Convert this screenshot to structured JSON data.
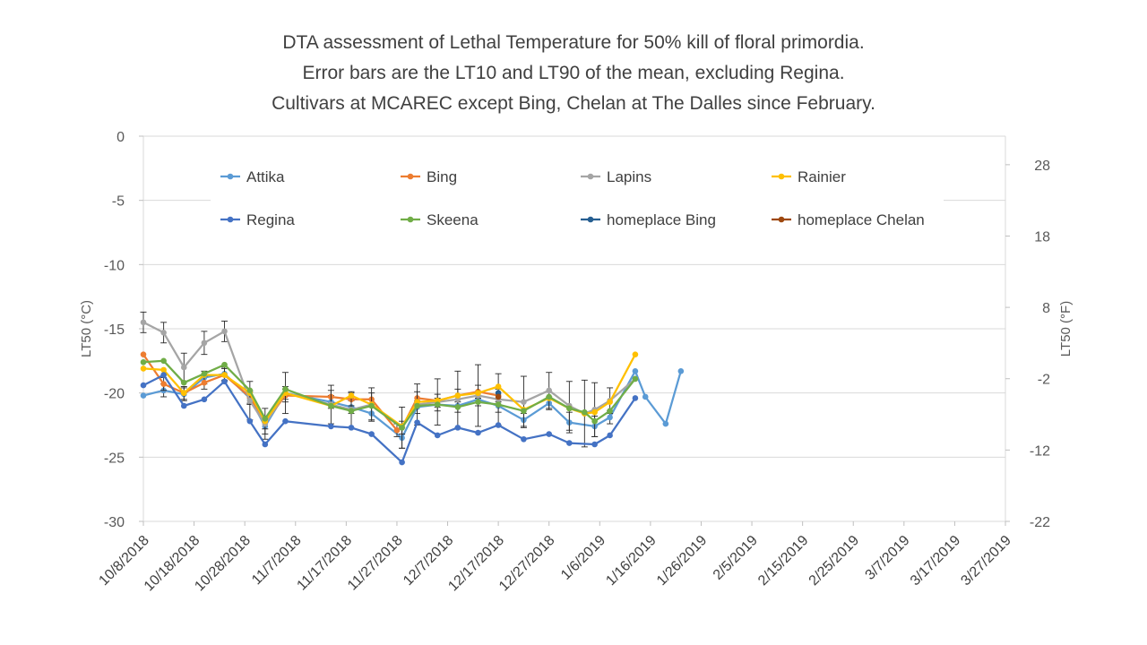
{
  "chart_data": {
    "type": "line",
    "title": [
      "DTA assessment of Lethal Temperature for 50% kill of floral primordia.",
      "Error bars are the LT10 and LT90 of the mean, excluding Regina.",
      "Cultivars at MCAREC except Bing, Chelan at The Dalles since  February."
    ],
    "xlabel": "",
    "ylabel": "LT50 (°C)",
    "y2label": "LT50 (°F)",
    "ylim": [
      -30,
      0
    ],
    "yticks": [
      0,
      -5,
      -10,
      -15,
      -20,
      -25,
      -30
    ],
    "y2ticks": [
      28,
      18,
      8,
      -2,
      -12,
      -22
    ],
    "xlim_days": [
      0,
      170
    ],
    "xticks": [
      "10/8/2018",
      "10/18/2018",
      "10/28/2018",
      "11/7/2018",
      "11/17/2018",
      "11/27/2018",
      "12/7/2018",
      "12/17/2018",
      "12/27/2018",
      "1/6/2019",
      "1/16/2019",
      "1/26/2019",
      "2/5/2019",
      "2/15/2019",
      "2/25/2019",
      "3/7/2019",
      "3/17/2019",
      "3/27/2019"
    ],
    "x_unit": "days since 10/8/2018",
    "legend_position": "top",
    "series": [
      {
        "name": "Attika",
        "color": "#5B9BD5",
        "x": [
          0,
          4,
          8,
          12,
          16,
          21,
          24,
          28,
          37,
          41,
          45,
          51,
          54,
          58,
          62,
          66,
          70,
          75,
          80,
          84,
          89,
          92,
          97,
          99,
          103,
          106
        ],
        "y": [
          -20.2,
          -19.8,
          -20.1,
          -18.8,
          -18.5,
          -20.4,
          -22.6,
          -20.0,
          -20.7,
          -21.1,
          -21.6,
          -23.5,
          -21.1,
          -20.9,
          -21.0,
          -20.5,
          -21.0,
          -22.1,
          -20.8,
          -22.3,
          -22.6,
          -21.9,
          -18.3,
          -20.3,
          -22.4,
          -18.3
        ],
        "err": [
          0,
          0.5,
          0.5,
          0.5,
          0.5,
          0.5,
          0.6,
          0.5,
          0.5,
          0.5,
          0.5,
          0.8,
          0.5,
          0.5,
          0.5,
          0.5,
          0.5,
          0.5,
          0.5,
          0.8,
          0.8,
          0.5,
          0,
          0,
          0,
          0
        ]
      },
      {
        "name": "Bing",
        "color": "#ED7D31",
        "x": [
          0,
          4,
          8,
          12,
          16,
          21,
          24,
          28,
          37,
          41,
          45,
          50,
          51,
          54,
          58,
          62,
          66,
          70
        ],
        "y": [
          -17.0,
          -19.3,
          -20.0,
          -19.2,
          -18.6,
          -20.3,
          -22.3,
          -20.2,
          -20.3,
          -20.5,
          -20.5,
          -22.9,
          -22.7,
          -20.4,
          -20.6,
          -20.2,
          -19.9,
          -20.2
        ],
        "err": [
          0,
          0.5,
          0.5,
          0.5,
          0.5,
          0.5,
          0.5,
          0.5,
          0.5,
          0.5,
          0.5,
          0.5,
          0.5,
          0.5,
          0.5,
          0.5,
          0.5,
          0.5
        ]
      },
      {
        "name": "Lapins",
        "color": "#A5A5A5",
        "x": [
          0,
          4,
          8,
          12,
          16,
          21,
          24,
          28,
          37,
          41,
          45,
          51,
          54,
          58,
          62,
          66,
          70,
          75,
          80,
          84,
          87,
          89,
          92,
          97
        ],
        "y": [
          -14.5,
          -15.3,
          -18.0,
          -16.1,
          -15.2,
          -20.6,
          -22.4,
          -20.0,
          -20.9,
          -21.3,
          -20.9,
          -22.7,
          -20.9,
          -20.7,
          -20.5,
          -20.2,
          -20.5,
          -20.7,
          -19.8,
          -21.0,
          -21.6,
          -21.3,
          -20.6,
          -18.9
        ],
        "err": [
          0.8,
          0.8,
          1.1,
          0.9,
          0.8,
          1.5,
          1.2,
          1.6,
          1.5,
          1.4,
          1.3,
          1.6,
          1.6,
          1.8,
          2.2,
          2.4,
          2.0,
          2.0,
          1.4,
          1.9,
          2.6,
          2.1,
          1.0,
          0
        ]
      },
      {
        "name": "Rainier",
        "color": "#FFC000",
        "x": [
          0,
          4,
          8,
          12,
          16,
          21,
          24,
          28,
          37,
          41,
          45,
          51,
          54,
          58,
          62,
          66,
          70,
          75,
          80,
          84,
          87,
          89,
          92,
          97
        ],
        "y": [
          -18.1,
          -18.2,
          -20.0,
          -18.6,
          -18.6,
          -20.0,
          -22.2,
          -20.0,
          -21.0,
          -20.2,
          -20.9,
          -22.6,
          -20.7,
          -20.6,
          -20.2,
          -20.0,
          -19.5,
          -21.3,
          -20.4,
          -21.2,
          -21.6,
          -21.5,
          -20.7,
          -17.0
        ],
        "err": [
          0,
          0,
          0,
          0,
          0,
          0,
          0,
          0,
          0,
          0,
          0,
          0,
          0,
          0,
          0,
          0,
          0,
          0,
          0,
          0,
          0,
          0,
          0,
          0
        ]
      },
      {
        "name": "Regina",
        "color": "#4472C4",
        "x": [
          0,
          4,
          8,
          12,
          16,
          21,
          24,
          28,
          37,
          41,
          45,
          51,
          54,
          58,
          62,
          66,
          70,
          75,
          80,
          84,
          89,
          92,
          97
        ],
        "y": [
          -19.4,
          -18.6,
          -21.0,
          -20.5,
          -19.1,
          -22.2,
          -24.0,
          -22.2,
          -22.6,
          -22.7,
          -23.2,
          -25.4,
          -22.3,
          -23.3,
          -22.7,
          -23.1,
          -22.5,
          -23.6,
          -23.2,
          -23.9,
          -24.0,
          -23.3,
          -20.4
        ],
        "err": [
          0,
          0,
          0,
          0,
          0,
          0,
          0,
          0,
          0,
          0,
          0,
          0,
          0,
          0,
          0,
          0,
          0,
          0,
          0,
          0,
          0,
          0,
          0
        ]
      },
      {
        "name": "Skeena",
        "color": "#70AD47",
        "x": [
          0,
          4,
          8,
          12,
          16,
          21,
          24,
          28,
          37,
          41,
          45,
          51,
          54,
          58,
          62,
          66,
          70,
          75,
          80,
          84,
          87,
          89,
          92,
          97
        ],
        "y": [
          -17.6,
          -17.5,
          -19.2,
          -18.5,
          -17.8,
          -19.8,
          -22.0,
          -19.7,
          -21.0,
          -21.4,
          -21.0,
          -22.7,
          -21.0,
          -20.9,
          -21.1,
          -20.7,
          -20.9,
          -21.4,
          -20.3,
          -21.2,
          -21.5,
          -22.2,
          -21.4,
          -18.9
        ],
        "err": [
          0,
          0,
          0,
          0,
          0,
          0,
          0,
          0,
          0,
          0,
          0,
          0,
          0,
          0,
          0,
          0,
          0,
          0,
          0,
          0,
          0,
          0,
          0,
          0
        ]
      },
      {
        "name": "homeplace Bing",
        "color": "#255E91",
        "x": [
          70
        ],
        "y": [
          -20.0
        ],
        "err": [
          0
        ]
      },
      {
        "name": "homeplace Chelan",
        "color": "#9E480E",
        "x": [
          70
        ],
        "y": [
          -20.3
        ],
        "err": [
          0
        ]
      }
    ]
  }
}
